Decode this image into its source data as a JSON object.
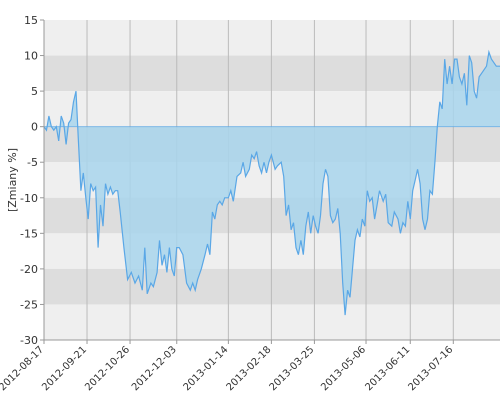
{
  "chart_data": {
    "type": "area",
    "ylabel": "[Zmiany %]",
    "ylim": [
      -30,
      15
    ],
    "y_ticks": [
      15,
      10,
      5,
      0,
      -5,
      -10,
      -15,
      -20,
      -25,
      -30
    ],
    "grid": "vertical",
    "x_tick_labels": [
      "2012-08-17",
      "2012-09-21",
      "2012-10-26",
      "2012-12-03",
      "2013-01-14",
      "2013-02-18",
      "2013-03-25",
      "2013-05-06",
      "2013-06-11",
      "2013-07-16"
    ],
    "x_tick_dates": [
      "2012-08-17",
      "2012-09-21",
      "2012-10-26",
      "2012-12-03",
      "2013-01-14",
      "2013-02-18",
      "2013-03-25",
      "2013-05-06",
      "2013-06-11",
      "2013-07-16"
    ],
    "x_end": "2013-08-23",
    "series": [
      {
        "color": "#5aa7e6",
        "fill": "#a8d5ec",
        "points": [
          [
            "2012-08-17",
            0
          ],
          [
            "2012-08-19",
            -0.5
          ],
          [
            "2012-08-21",
            1.5
          ],
          [
            "2012-08-23",
            0
          ],
          [
            "2012-08-25",
            -0.5
          ],
          [
            "2012-08-27",
            0
          ],
          [
            "2012-08-29",
            -2
          ],
          [
            "2012-08-31",
            1.5
          ],
          [
            "2012-09-02",
            0.5
          ],
          [
            "2012-09-04",
            -2.5
          ],
          [
            "2012-09-06",
            0.5
          ],
          [
            "2012-09-08",
            1
          ],
          [
            "2012-09-10",
            3.5
          ],
          [
            "2012-09-12",
            5
          ],
          [
            "2012-09-14",
            -2
          ],
          [
            "2012-09-16",
            -9
          ],
          [
            "2012-09-18",
            -6.5
          ],
          [
            "2012-09-20",
            -10
          ],
          [
            "2012-09-22",
            -13
          ],
          [
            "2012-09-24",
            -8
          ],
          [
            "2012-09-26",
            -9
          ],
          [
            "2012-09-28",
            -8.5
          ],
          [
            "2012-09-30",
            -17
          ],
          [
            "2012-10-02",
            -11
          ],
          [
            "2012-10-04",
            -14
          ],
          [
            "2012-10-06",
            -8
          ],
          [
            "2012-10-08",
            -9.5
          ],
          [
            "2012-10-10",
            -8.5
          ],
          [
            "2012-10-12",
            -9.5
          ],
          [
            "2012-10-14",
            -9
          ],
          [
            "2012-10-16",
            -9
          ],
          [
            "2012-10-18",
            -12
          ],
          [
            "2012-10-21",
            -17
          ],
          [
            "2012-10-24",
            -21.5
          ],
          [
            "2012-10-27",
            -20.5
          ],
          [
            "2012-10-30",
            -22
          ],
          [
            "2012-11-02",
            -21
          ],
          [
            "2012-11-05",
            -23
          ],
          [
            "2012-11-07",
            -17
          ],
          [
            "2012-11-09",
            -23.5
          ],
          [
            "2012-11-12",
            -22
          ],
          [
            "2012-11-14",
            -22.5
          ],
          [
            "2012-11-17",
            -20.5
          ],
          [
            "2012-11-19",
            -16
          ],
          [
            "2012-11-21",
            -19.5
          ],
          [
            "2012-11-23",
            -18
          ],
          [
            "2012-11-25",
            -20.5
          ],
          [
            "2012-11-27",
            -17
          ],
          [
            "2012-11-29",
            -20
          ],
          [
            "2012-12-01",
            -21
          ],
          [
            "2012-12-03",
            -17
          ],
          [
            "2012-12-05",
            -17
          ],
          [
            "2012-12-08",
            -18
          ],
          [
            "2012-12-11",
            -22
          ],
          [
            "2012-12-14",
            -23
          ],
          [
            "2012-12-16",
            -22
          ],
          [
            "2012-12-18",
            -23
          ],
          [
            "2012-12-20",
            -21.5
          ],
          [
            "2012-12-23",
            -20
          ],
          [
            "2012-12-26",
            -18
          ],
          [
            "2012-12-28",
            -16.5
          ],
          [
            "2012-12-30",
            -18
          ],
          [
            "2013-01-01",
            -12
          ],
          [
            "2013-01-03",
            -13
          ],
          [
            "2013-01-05",
            -11
          ],
          [
            "2013-01-07",
            -10.5
          ],
          [
            "2013-01-09",
            -11
          ],
          [
            "2013-01-11",
            -10
          ],
          [
            "2013-01-14",
            -10
          ],
          [
            "2013-01-16",
            -9
          ],
          [
            "2013-01-18",
            -10.5
          ],
          [
            "2013-01-21",
            -7
          ],
          [
            "2013-01-24",
            -6.5
          ],
          [
            "2013-01-26",
            -5
          ],
          [
            "2013-01-28",
            -7
          ],
          [
            "2013-01-31",
            -6
          ],
          [
            "2013-02-02",
            -4
          ],
          [
            "2013-02-04",
            -4.5
          ],
          [
            "2013-02-06",
            -3.5
          ],
          [
            "2013-02-08",
            -5.5
          ],
          [
            "2013-02-10",
            -6.5
          ],
          [
            "2013-02-12",
            -5
          ],
          [
            "2013-02-14",
            -6.5
          ],
          [
            "2013-02-16",
            -5
          ],
          [
            "2013-02-18",
            -4
          ],
          [
            "2013-02-21",
            -6
          ],
          [
            "2013-02-23",
            -5.5
          ],
          [
            "2013-02-26",
            -5
          ],
          [
            "2013-02-28",
            -7
          ],
          [
            "2013-03-02",
            -12.5
          ],
          [
            "2013-03-04",
            -11
          ],
          [
            "2013-03-06",
            -14.5
          ],
          [
            "2013-03-08",
            -13.5
          ],
          [
            "2013-03-10",
            -17
          ],
          [
            "2013-03-12",
            -18
          ],
          [
            "2013-03-14",
            -16
          ],
          [
            "2013-03-16",
            -18
          ],
          [
            "2013-03-18",
            -14
          ],
          [
            "2013-03-20",
            -12
          ],
          [
            "2013-03-22",
            -15
          ],
          [
            "2013-03-24",
            -12.5
          ],
          [
            "2013-03-26",
            -14
          ],
          [
            "2013-03-28",
            -15
          ],
          [
            "2013-03-30",
            -12.5
          ],
          [
            "2013-04-01",
            -8
          ],
          [
            "2013-04-03",
            -6
          ],
          [
            "2013-04-05",
            -7
          ],
          [
            "2013-04-07",
            -12.5
          ],
          [
            "2013-04-09",
            -13.5
          ],
          [
            "2013-04-11",
            -13
          ],
          [
            "2013-04-13",
            -11.5
          ],
          [
            "2013-04-15",
            -15
          ],
          [
            "2013-04-17",
            -22
          ],
          [
            "2013-04-19",
            -26.5
          ],
          [
            "2013-04-21",
            -23
          ],
          [
            "2013-04-23",
            -24
          ],
          [
            "2013-04-25",
            -20
          ],
          [
            "2013-04-27",
            -16
          ],
          [
            "2013-04-29",
            -14.5
          ],
          [
            "2013-05-01",
            -15.5
          ],
          [
            "2013-05-03",
            -13
          ],
          [
            "2013-05-05",
            -14
          ],
          [
            "2013-05-07",
            -9
          ],
          [
            "2013-05-09",
            -10.5
          ],
          [
            "2013-05-11",
            -10
          ],
          [
            "2013-05-13",
            -13
          ],
          [
            "2013-05-15",
            -11
          ],
          [
            "2013-05-17",
            -9
          ],
          [
            "2013-05-20",
            -10.5
          ],
          [
            "2013-05-22",
            -9.5
          ],
          [
            "2013-05-24",
            -13.5
          ],
          [
            "2013-05-27",
            -14
          ],
          [
            "2013-05-29",
            -12
          ],
          [
            "2013-06-01",
            -13
          ],
          [
            "2013-06-03",
            -15
          ],
          [
            "2013-06-05",
            -13.5
          ],
          [
            "2013-06-07",
            -14
          ],
          [
            "2013-06-09",
            -10.5
          ],
          [
            "2013-06-11",
            -13
          ],
          [
            "2013-06-13",
            -9
          ],
          [
            "2013-06-15",
            -7.5
          ],
          [
            "2013-06-17",
            -6
          ],
          [
            "2013-06-19",
            -8
          ],
          [
            "2013-06-21",
            -13
          ],
          [
            "2013-06-23",
            -14.5
          ],
          [
            "2013-06-25",
            -13
          ],
          [
            "2013-06-27",
            -9
          ],
          [
            "2013-06-29",
            -9.5
          ],
          [
            "2013-07-01",
            -5
          ],
          [
            "2013-07-03",
            0
          ],
          [
            "2013-07-05",
            3.5
          ],
          [
            "2013-07-07",
            2.5
          ],
          [
            "2013-07-09",
            9.5
          ],
          [
            "2013-07-11",
            6
          ],
          [
            "2013-07-13",
            8.5
          ],
          [
            "2013-07-15",
            6
          ],
          [
            "2013-07-17",
            9.5
          ],
          [
            "2013-07-19",
            9.5
          ],
          [
            "2013-07-21",
            7
          ],
          [
            "2013-07-23",
            6
          ],
          [
            "2013-07-25",
            7.5
          ],
          [
            "2013-07-27",
            3
          ],
          [
            "2013-07-29",
            10
          ],
          [
            "2013-07-31",
            9
          ],
          [
            "2013-08-02",
            5
          ],
          [
            "2013-08-04",
            4
          ],
          [
            "2013-08-06",
            7
          ],
          [
            "2013-08-08",
            7.5
          ],
          [
            "2013-08-10",
            8
          ],
          [
            "2013-08-12",
            8.5
          ],
          [
            "2013-08-14",
            10.5
          ],
          [
            "2013-08-16",
            9.5
          ],
          [
            "2013-08-18",
            9
          ],
          [
            "2013-08-20",
            8.5
          ],
          [
            "2013-08-23",
            8.5
          ]
        ]
      }
    ],
    "colors": {
      "band_light": "#efefef",
      "band_dark": "#dddddd",
      "vgrid": "#bbbbbb",
      "axis": "#999999",
      "tick_text": "#333333"
    }
  }
}
